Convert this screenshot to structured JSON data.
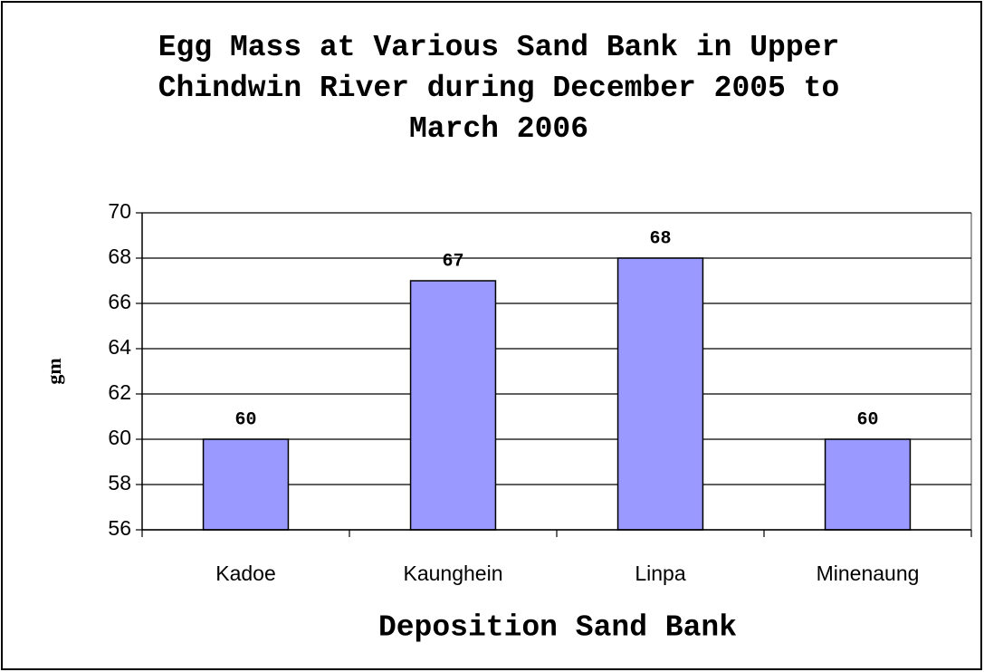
{
  "chart_data": {
    "type": "bar",
    "title": "Egg Mass at Various Sand Bank in Upper Chindwin River during December 2005 to March 2006",
    "x_label": "Deposition Sand Bank",
    "y_label": "gm",
    "categories": [
      "Kadoe",
      "Kaunghein",
      "Linpa",
      "Minenaung"
    ],
    "values": [
      60,
      67,
      68,
      60
    ],
    "color": "#9999ff",
    "ylim": [
      56,
      70
    ],
    "yticks": [
      56,
      58,
      60,
      62,
      64,
      66,
      68,
      70
    ],
    "grid": true
  }
}
